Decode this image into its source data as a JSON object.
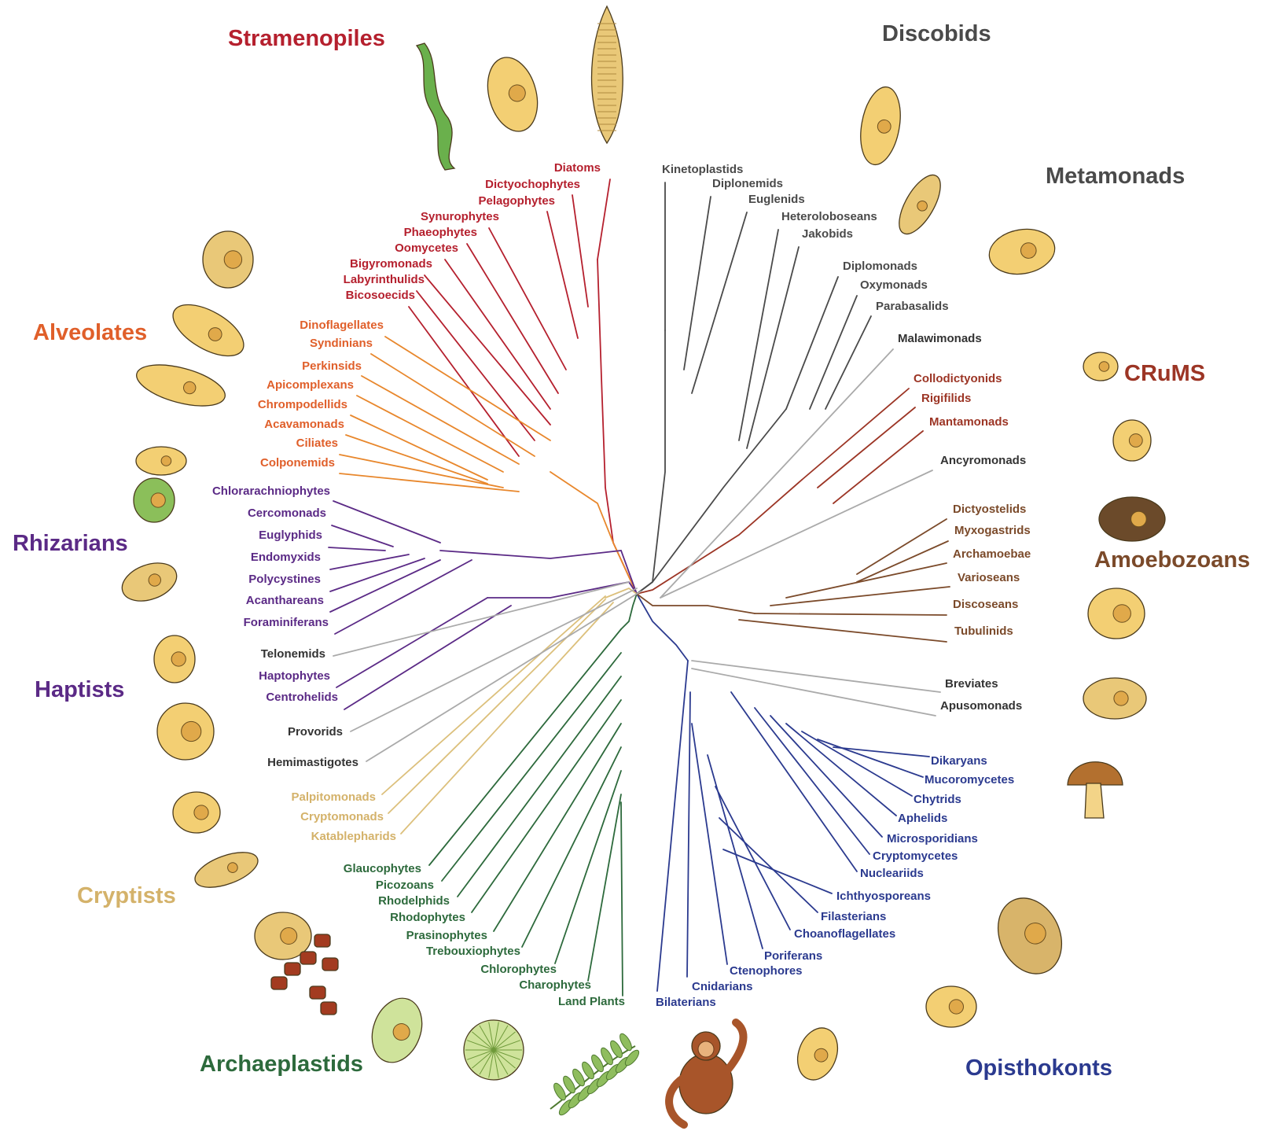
{
  "colors": {
    "stramenopiles": "#b5202e",
    "alveolates": "#e8872c",
    "alveolates_text": "#e05f2a",
    "rhizarians": "#5b2a86",
    "haptists": "#5b2a86",
    "cryptists": "#dcc07c",
    "cryptists_text": "#d4b26a",
    "archaeplastids": "#2d6a3c",
    "opisthokonts": "#2b3a8f",
    "amoebozoans": "#7b4a2a",
    "crums": "#9c3525",
    "discobids": "#4a4a4a",
    "metamonads": "#4a4a4a",
    "orphan": "#aaaaaa",
    "orphan_text": "#333333",
    "illustration_fill": "#f3cf73"
  },
  "groups": {
    "stramenopiles": "Stramenopiles",
    "alveolates": "Alveolates",
    "rhizarians": "Rhizarians",
    "haptists": "Haptists",
    "cryptists": "Cryptists",
    "archaeplastids": "Archaeplastids",
    "opisthokonts": "Opisthokonts",
    "amoebozoans": "Amoebozoans",
    "crums": "CRuMS",
    "discobids": "Discobids",
    "metamonads": "Metamonads"
  },
  "taxa": {
    "stramenopiles": [
      "Diatoms",
      "Dictyochophytes",
      "Pelagophytes",
      "Synurophytes",
      "Phaeophytes",
      "Oomycetes",
      "Bigyromonads",
      "Labyrinthulids",
      "Bicosoecids"
    ],
    "alveolates": [
      "Dinoflagellates",
      "Syndinians",
      "Perkinsids",
      "Apicomplexans",
      "Chrompodellids",
      "Acavamonads",
      "Ciliates",
      "Colponemids"
    ],
    "rhizarians": [
      "Chlorarachniophytes",
      "Cercomonads",
      "Euglyphids",
      "Endomyxids",
      "Polycystines",
      "Acanthareans",
      "Foraminiferans"
    ],
    "orphans_left": [
      "Telonemids",
      "Provorids",
      "Hemimastigotes"
    ],
    "haptists": [
      "Haptophytes",
      "Centrohelids"
    ],
    "cryptists": [
      "Palpitomonads",
      "Cryptomonads",
      "Katablepharids"
    ],
    "archaeplastids": [
      "Glaucophytes",
      "Picozoans",
      "Rhodelphids",
      "Rhodophytes",
      "Prasinophytes",
      "Trebouxiophytes",
      "Chlorophytes",
      "Charophytes",
      "Land Plants"
    ],
    "opisthokonts": [
      "Bilaterians",
      "Cnidarians",
      "Ctenophores",
      "Poriferans",
      "Choanoflagellates",
      "Filasterians",
      "Ichthyosporeans",
      "Nucleariids",
      "Cryptomycetes",
      "Microsporidians",
      "Aphelids",
      "Chytrids",
      "Mucoromycetes",
      "Dikaryans"
    ],
    "orphans_right": [
      "Breviates",
      "Apusomonads",
      "Ancyromonads",
      "Malawimonads"
    ],
    "amoebozoans": [
      "Dictyostelids",
      "Myxogastrids",
      "Archamoebae",
      "Varioseans",
      "Discoseans",
      "Tubulinids"
    ],
    "crums": [
      "Collodictyonids",
      "Rigifilids",
      "Mantamonads"
    ],
    "discobids": [
      "Kinetoplastids",
      "Diplonemids",
      "Euglenids",
      "Heteroloboseans",
      "Jakobids"
    ],
    "metamonads": [
      "Diplomonads",
      "Oxymonads",
      "Parabasalids"
    ]
  },
  "illustrations": [
    "diatom-illustration",
    "ciliate-illustration",
    "kelp-illustration",
    "mushroom-illustration",
    "orangutan-illustration",
    "fern-illustration",
    "sun-alga-illustration",
    "red-alga-illustration"
  ]
}
